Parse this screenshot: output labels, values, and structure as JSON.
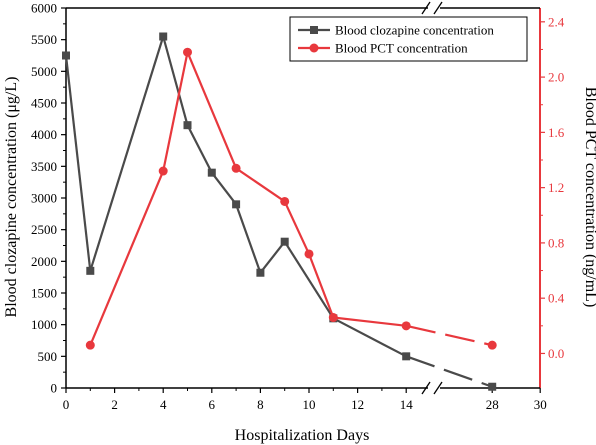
{
  "chart_data": {
    "type": "line",
    "xlabel": "Hospitalization Days",
    "ylabel_left": "Blood clozapine concentration (μg/L)",
    "ylabel_right": "Blood PCT concentration (ng/mL)",
    "x_ticks": [
      "0",
      "2",
      "4",
      "6",
      "8",
      "10",
      "12",
      "14",
      "28",
      "30"
    ],
    "x_ticks_positions_days": [
      0,
      2,
      4,
      6,
      8,
      10,
      12,
      14,
      28,
      30
    ],
    "ylim_left": [
      0,
      6000
    ],
    "y_ticks_left": [
      "0",
      "500",
      "1000",
      "1500",
      "2000",
      "2500",
      "3000",
      "3500",
      "4000",
      "4500",
      "5000",
      "5500",
      "6000"
    ],
    "ylim_right": [
      -0.25,
      2.5
    ],
    "y_ticks_right": [
      "0.0",
      "0.4",
      "0.8",
      "1.2",
      "1.6",
      "2.0",
      "2.4"
    ],
    "axis_break": "between day 14 and day 28",
    "legend_position": "top-right",
    "series": [
      {
        "name": "Blood clozapine concentration",
        "axis": "left",
        "color": "#4a4a4a",
        "marker": "square",
        "x": [
          0,
          1,
          4,
          5,
          6,
          7,
          8,
          9,
          11,
          14,
          28
        ],
        "values": [
          5250,
          1850,
          5550,
          4150,
          3400,
          2900,
          1820,
          2310,
          1100,
          500,
          20
        ]
      },
      {
        "name": "Blood PCT concentration",
        "axis": "right",
        "color": "#e8383d",
        "marker": "circle",
        "x": [
          1,
          4,
          5,
          7,
          9,
          10,
          11,
          14,
          28
        ],
        "values": [
          0.06,
          1.32,
          2.18,
          1.34,
          1.1,
          0.72,
          0.26,
          0.2,
          0.06
        ]
      }
    ]
  }
}
